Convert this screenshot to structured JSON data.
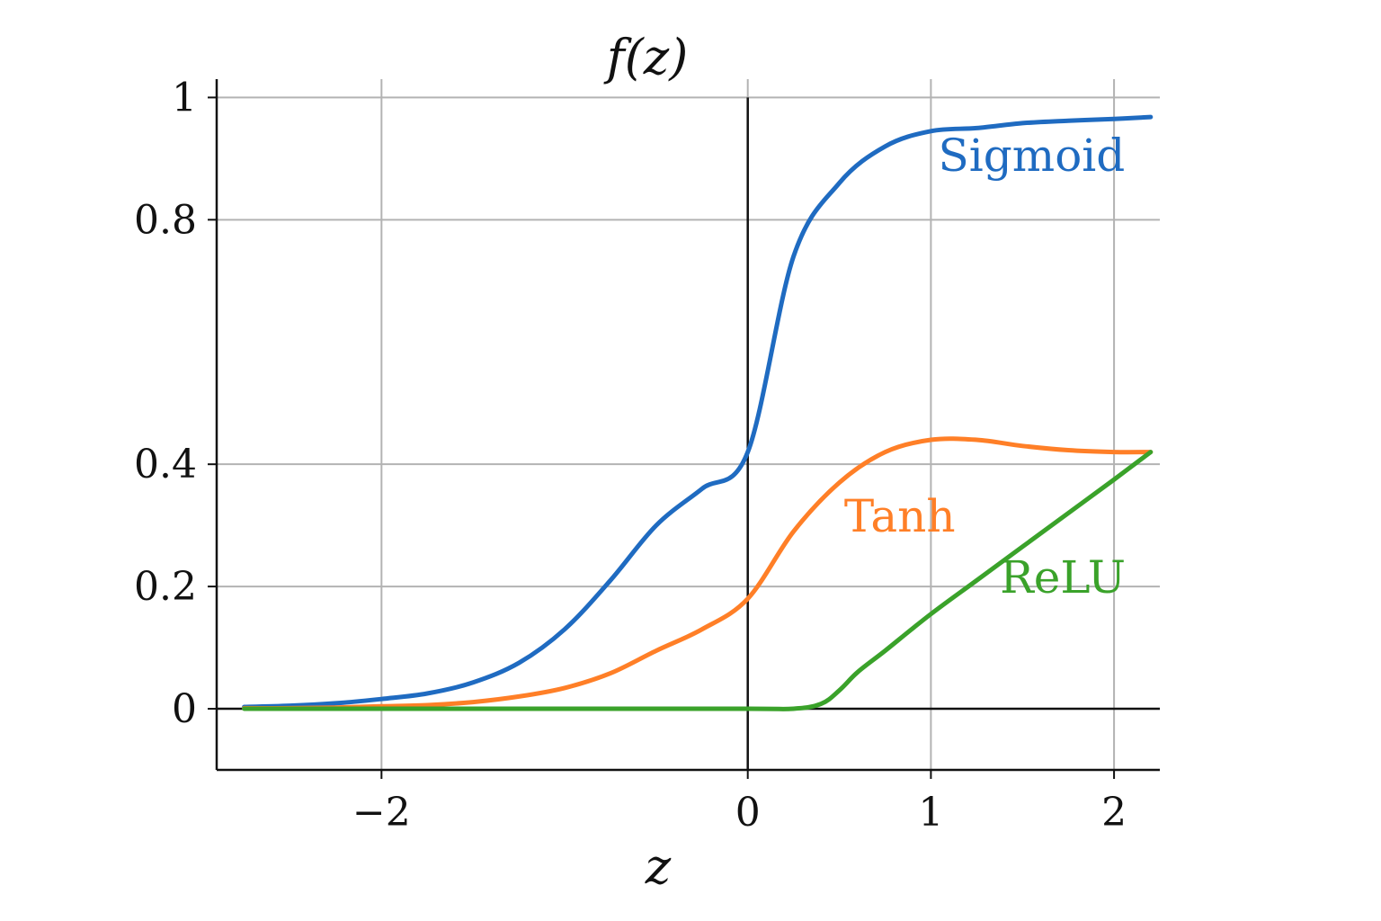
{
  "chart_data": {
    "type": "line",
    "title": "f(z)",
    "xlabel": "z",
    "ylabel": "",
    "xlim": [
      -2.9,
      2.25
    ],
    "ylim": [
      -0.1,
      1.03
    ],
    "grid": true,
    "xticks": [
      -2,
      0,
      1,
      2
    ],
    "xtick_labels": [
      "−2",
      "0",
      "1",
      "2"
    ],
    "yticks": [
      0,
      0.2,
      0.4,
      0.8,
      1
    ],
    "ytick_labels": [
      "0",
      "0.2",
      "0.4",
      "0.8",
      "1"
    ],
    "series": [
      {
        "name": "Sigmoid",
        "color": "#1f6bc1",
        "x": [
          -2.75,
          -2.5,
          -2.25,
          -2.0,
          -1.75,
          -1.5,
          -1.25,
          -1.0,
          -0.75,
          -0.5,
          -0.25,
          0.0,
          0.25,
          0.5,
          0.75,
          1.0,
          1.25,
          1.5,
          1.75,
          2.0,
          2.2
        ],
        "y": [
          0.003,
          0.005,
          0.009,
          0.016,
          0.025,
          0.043,
          0.075,
          0.13,
          0.21,
          0.3,
          0.36,
          0.42,
          0.74,
          0.86,
          0.92,
          0.945,
          0.95,
          0.958,
          0.962,
          0.965,
          0.968
        ]
      },
      {
        "name": "Tanh",
        "color": "#ff7f27",
        "x": [
          -2.75,
          -2.5,
          -2.25,
          -2.0,
          -1.75,
          -1.5,
          -1.25,
          -1.0,
          -0.75,
          -0.5,
          -0.25,
          0.0,
          0.25,
          0.5,
          0.75,
          1.0,
          1.25,
          1.5,
          1.75,
          2.0,
          2.2
        ],
        "y": [
          0.001,
          0.001,
          0.002,
          0.004,
          0.006,
          0.011,
          0.02,
          0.034,
          0.058,
          0.095,
          0.13,
          0.18,
          0.29,
          0.37,
          0.42,
          0.44,
          0.44,
          0.43,
          0.423,
          0.42,
          0.42
        ]
      },
      {
        "name": "ReLU",
        "color": "#3aa22a",
        "x": [
          -2.75,
          -1.0,
          0.0,
          0.25,
          0.4,
          0.5,
          0.6,
          0.75,
          1.0,
          1.25,
          1.5,
          1.75,
          2.0,
          2.2
        ],
        "y": [
          0.0,
          0.0,
          0.0,
          0.0,
          0.008,
          0.03,
          0.06,
          0.095,
          0.155,
          0.21,
          0.265,
          0.32,
          0.375,
          0.42
        ]
      }
    ],
    "annotations": [
      {
        "text": "Sigmoid",
        "x": 1.55,
        "y": 0.88,
        "color": "#1f6bc1"
      },
      {
        "text": "Tanh",
        "x": 0.83,
        "y": 0.29,
        "color": "#ff7f27"
      },
      {
        "text": "ReLU",
        "x": 1.72,
        "y": 0.19,
        "color": "#3aa22a"
      }
    ]
  }
}
